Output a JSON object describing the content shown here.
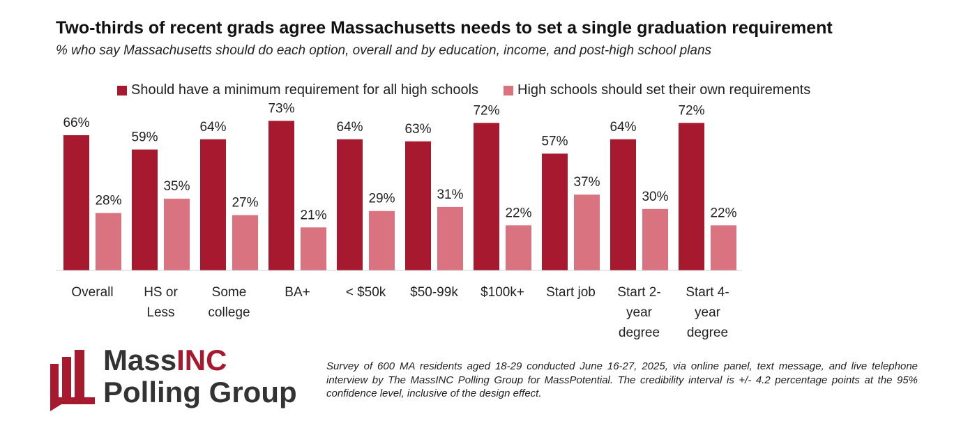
{
  "title": "Two-thirds of recent grads agree Massachusetts needs to set a single graduation requirement",
  "subtitle": "% who say Massachusetts should do each option, overall and by education, income, and post-high school plans",
  "colors": {
    "primary": "#A6192E",
    "secondary": "#D9737F",
    "logo_text": "#333333",
    "axis": "#d0d0d0"
  },
  "chart_data": {
    "type": "bar",
    "groups": [
      [
        "Overall"
      ],
      [
        "HS or Less",
        "Some college",
        "BA+"
      ],
      [
        "< $50k",
        "$50-99k",
        "$100k+"
      ],
      [
        "Start job",
        "Start 2-year degree",
        "Start 4-year degree"
      ]
    ],
    "categories": [
      "Overall",
      "HS or Less",
      "Some college",
      "BA+",
      "< $50k",
      "$50-99k",
      "$100k+",
      "Start job",
      "Start 2-year degree",
      "Start 4-year degree"
    ],
    "category_display": [
      [
        "Overall"
      ],
      [
        "HS or",
        "Less"
      ],
      [
        "Some",
        "college"
      ],
      [
        "BA+"
      ],
      [
        "< $50k"
      ],
      [
        "$50-99k"
      ],
      [
        "$100k+"
      ],
      [
        "Start job"
      ],
      [
        "Start 2-",
        "year",
        "degree"
      ],
      [
        "Start 4-",
        "year",
        "degree"
      ]
    ],
    "series": [
      {
        "name": "Should have a minimum requirement for all high schools",
        "values": [
          66,
          59,
          64,
          73,
          64,
          63,
          72,
          57,
          64,
          72
        ],
        "labels": [
          "66%",
          "59%",
          "64%",
          "73%",
          "64%",
          "63%",
          "72%",
          "57%",
          "64%",
          "72%"
        ]
      },
      {
        "name": "High schools should set their own requirements",
        "values": [
          28,
          35,
          27,
          21,
          29,
          31,
          22,
          37,
          30,
          22
        ],
        "labels": [
          "28%",
          "35%",
          "27%",
          "21%",
          "29%",
          "31%",
          "22%",
          "37%",
          "30%",
          "22%"
        ]
      }
    ],
    "ylim": [
      0,
      100
    ],
    "xlabel": "",
    "ylabel": "",
    "grid": false,
    "legend_position": "top"
  },
  "logo": {
    "line1_part1": "Mass",
    "line1_part2": "INC",
    "line2": "Polling Group"
  },
  "footnote": "Survey of 600 MA residents aged 18-29 conducted June 16-27, 2025, via online panel, text message, and live telephone interview by The MassINC Polling Group for MassPotential. The credibility interval is +/- 4.2 percentage points at the 95% confidence level, inclusive of the design effect."
}
